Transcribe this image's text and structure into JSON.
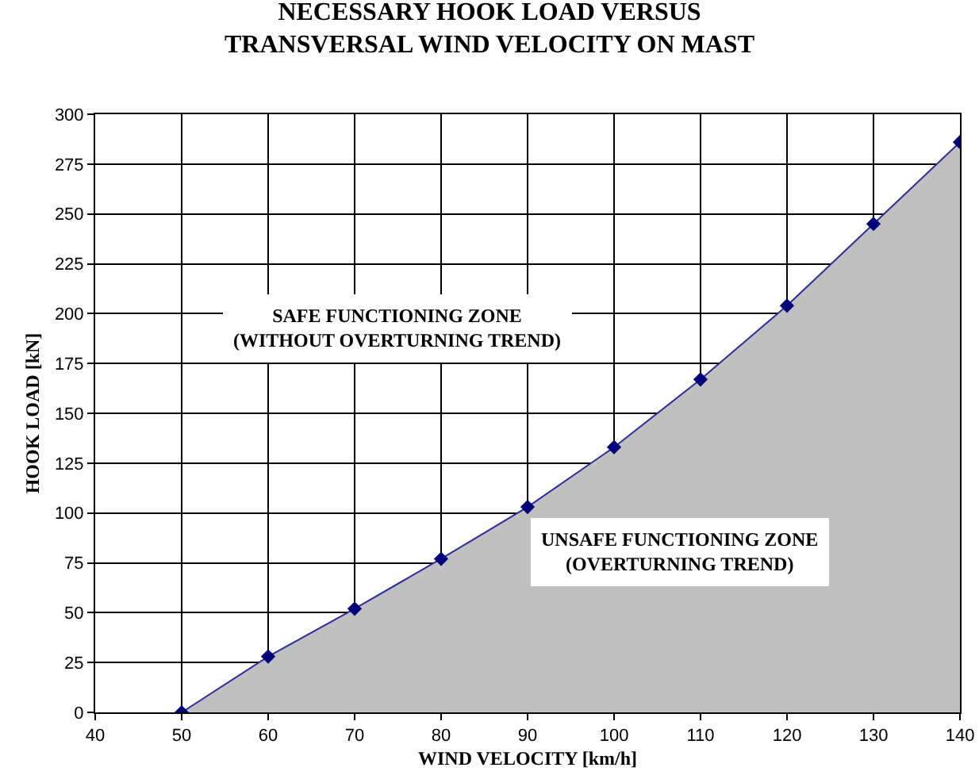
{
  "chart_data": {
    "type": "area",
    "title": "NECESSARY HOOK LOAD VERSUS\nTRANSVERSAL WIND VELOCITY ON MAST",
    "xlabel": "WIND VELOCITY [km/h]",
    "ylabel": "HOOK LOAD [kN]",
    "x": [
      50,
      60,
      70,
      80,
      90,
      100,
      110,
      120,
      130,
      140
    ],
    "series": [
      {
        "color": "#2b2b9e",
        "values": [
          0,
          28,
          52,
          77,
          103,
          133,
          167,
          204,
          245,
          286
        ]
      }
    ],
    "xlim": [
      40,
      140
    ],
    "xticks": [
      40,
      50,
      60,
      70,
      80,
      90,
      100,
      110,
      120,
      130,
      140
    ],
    "ylim": [
      0,
      300
    ],
    "yticks": [
      0,
      25,
      50,
      75,
      100,
      125,
      150,
      175,
      200,
      225,
      250,
      275,
      300
    ],
    "grid": true,
    "marker": "diamond",
    "line_style": "solid",
    "annotations": [
      "SAFE FUNCTIONING ZONE\n(WITHOUT OVERTURNING TREND)",
      "UNSAFE FUNCTIONING ZONE\n(OVERTURNING TREND)"
    ]
  }
}
